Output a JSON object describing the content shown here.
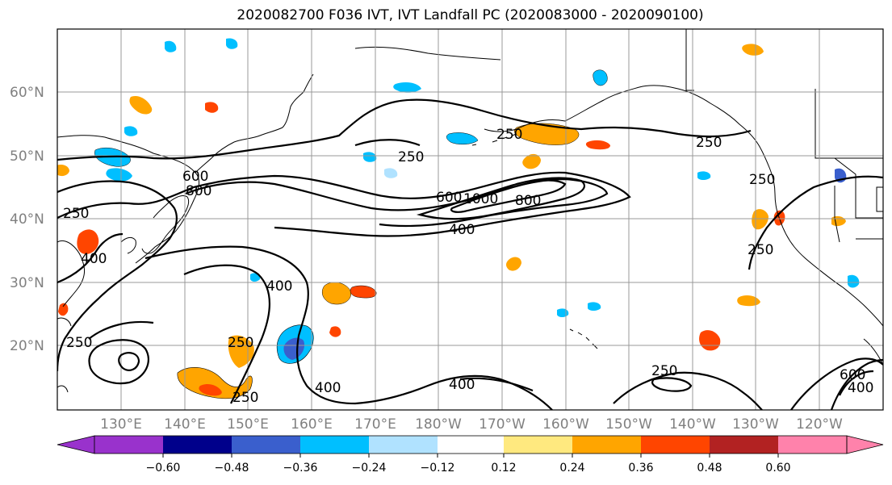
{
  "title": "2020082700 F036 IVT, IVT Landfall PC (2020083000 - 2020090100)",
  "latitude_labels": [
    "60°N",
    "50°N",
    "40°N",
    "30°N",
    "20°N"
  ],
  "longitude_labels": [
    "130°E",
    "140°E",
    "150°E",
    "160°E",
    "170°E",
    "180°W",
    "170°W",
    "160°W",
    "150°W",
    "140°W",
    "130°W",
    "120°W"
  ],
  "contour_labels": [
    "250",
    "250",
    "250",
    "250",
    "250",
    "250",
    "250",
    "250",
    "250",
    "250",
    "400",
    "400",
    "400",
    "400",
    "400",
    "400",
    "600",
    "600",
    "600",
    "800",
    "1000",
    "800"
  ],
  "colorbar": {
    "colors": [
      "#9932cc",
      "#00008b",
      "#3a5fcd",
      "#00bfff",
      "#b0e2ff",
      "#ffffff",
      "#ffe97f",
      "#ffa500",
      "#ff4500",
      "#b22222",
      "#ff82ab"
    ],
    "ticks": [
      "−0.60",
      "−0.48",
      "−0.36",
      "−0.24",
      "−0.12",
      "0.12",
      "0.24",
      "0.36",
      "0.48",
      "0.60"
    ]
  },
  "colors": {
    "frame": "#000000",
    "grid": "#999999",
    "coast": "#000000",
    "contour": "#000000"
  }
}
